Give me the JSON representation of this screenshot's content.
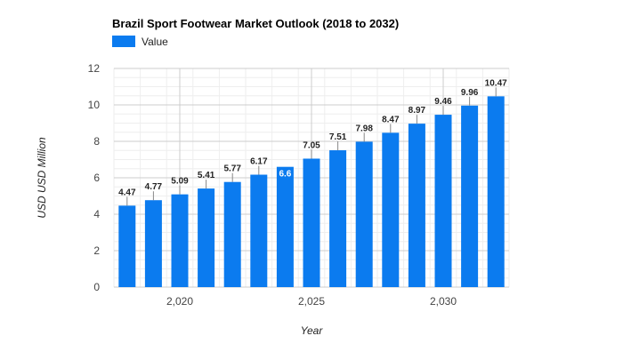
{
  "chart_data": {
    "type": "bar",
    "title": "Brazil Sport Footwear Market Outlook (2018 to 2032)",
    "xlabel": "Year",
    "ylabel": "USD USD Million",
    "legend": {
      "position": "top-left",
      "entries": [
        "Value"
      ]
    },
    "x": [
      2018,
      2019,
      2020,
      2021,
      2022,
      2023,
      2024,
      2025,
      2026,
      2027,
      2028,
      2029,
      2030,
      2031,
      2032
    ],
    "x_ticks": [
      2020,
      2025,
      2030
    ],
    "x_tick_labels": [
      "2,020",
      "2,025",
      "2,030"
    ],
    "series": [
      {
        "name": "Value",
        "color": "#0b7bef",
        "values": [
          4.47,
          4.77,
          5.09,
          5.41,
          5.77,
          6.17,
          6.6,
          7.05,
          7.51,
          7.98,
          8.47,
          8.97,
          9.46,
          9.96,
          10.47
        ]
      }
    ],
    "data_labels": [
      "4.47",
      "4.77",
      "5.09",
      "5.41",
      "5.77",
      "6.17",
      "6.6",
      "7.05",
      "7.51",
      "7.98",
      "8.47",
      "8.97",
      "9.46",
      "9.96",
      "10.47"
    ],
    "highlighted_index": 6,
    "ylim": [
      0,
      12
    ],
    "y_ticks": [
      0,
      2,
      4,
      6,
      8,
      10,
      12
    ],
    "grid": true
  }
}
